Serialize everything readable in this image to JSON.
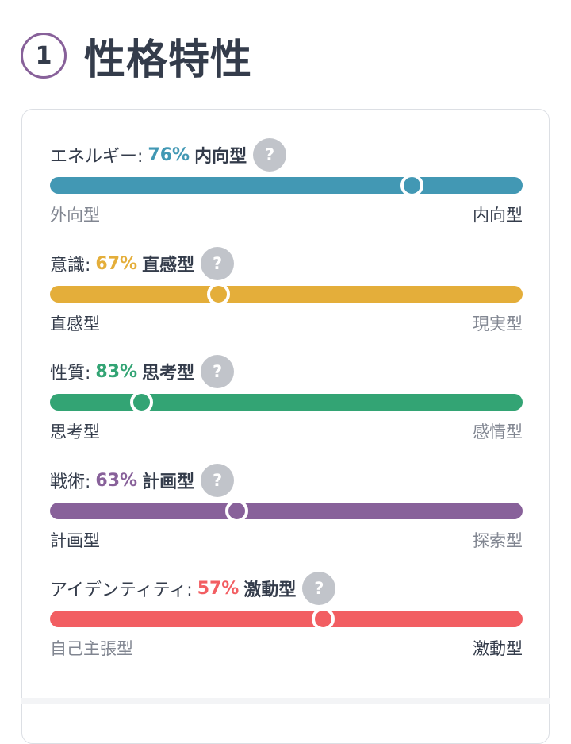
{
  "section": {
    "number": "1",
    "title": "性格特性"
  },
  "traits": [
    {
      "name": "エネルギー:",
      "percent": "76%",
      "type": "内向型",
      "left": "外向型",
      "right": "内向型",
      "active": "right",
      "position": 0.765,
      "color": "#4298b4"
    },
    {
      "name": "意識:",
      "percent": "67%",
      "type": "直感型",
      "left": "直感型",
      "right": "現実型",
      "active": "left",
      "position": 0.355,
      "color": "#e4ae3a"
    },
    {
      "name": "性質:",
      "percent": "83%",
      "type": "思考型",
      "left": "思考型",
      "right": "感情型",
      "active": "left",
      "position": 0.193,
      "color": "#33a474"
    },
    {
      "name": "戦術:",
      "percent": "63%",
      "type": "計画型",
      "left": "計画型",
      "right": "探索型",
      "active": "left",
      "position": 0.395,
      "color": "#88619a"
    },
    {
      "name": "アイデンティティ:",
      "percent": "57%",
      "type": "激動型",
      "left": "自己主張型",
      "right": "激動型",
      "active": "right",
      "position": 0.577,
      "color": "#f25e62"
    }
  ],
  "help_icon": "question-mark-icon",
  "help_label": "?"
}
